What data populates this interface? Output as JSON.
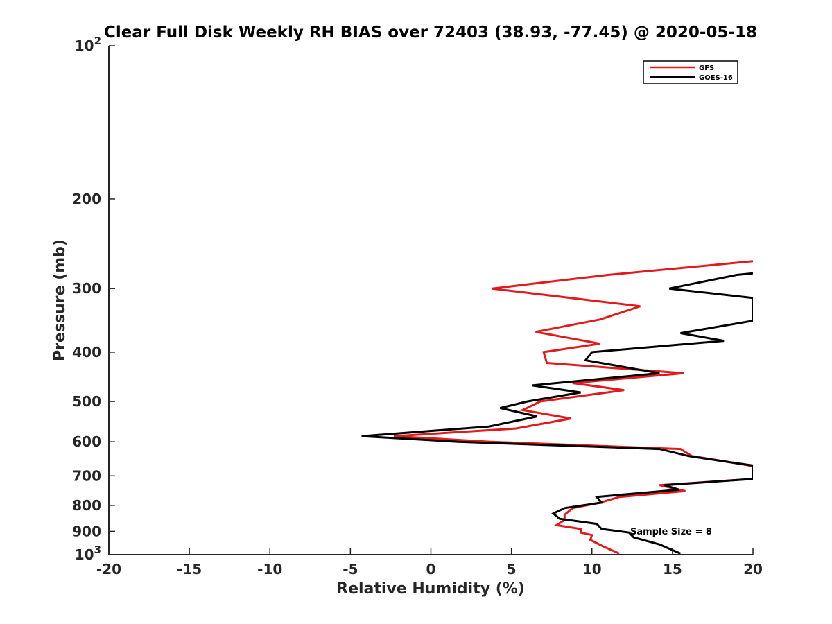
{
  "chart_data": {
    "type": "line",
    "title": "Clear Full Disk Weekly RH BIAS over 72403 (38.93, -77.45) @ 2020-05-18",
    "xlabel": "Relative Humidity (%)",
    "ylabel": "Pressure (mb)",
    "xlim": [
      -20,
      20
    ],
    "ylim": [
      100,
      1000
    ],
    "y_scale": "log",
    "y_reversed": true,
    "grid": false,
    "legend_position": "top-right",
    "x_ticks": [
      "-20",
      "-15",
      "-10",
      "-5",
      "0",
      "5",
      "10",
      "15",
      "20"
    ],
    "y_ticks": [
      {
        "value": 100,
        "base": "10",
        "exp": "2"
      },
      {
        "value": 200,
        "label": "200"
      },
      {
        "value": 300,
        "label": "300"
      },
      {
        "value": 400,
        "label": "400"
      },
      {
        "value": 500,
        "label": "500"
      },
      {
        "value": 600,
        "label": "600"
      },
      {
        "value": 700,
        "label": "700"
      },
      {
        "value": 800,
        "label": "800"
      },
      {
        "value": 900,
        "label": "900"
      },
      {
        "value": 1000,
        "base": "10",
        "exp": "3"
      }
    ],
    "annotation": "Sample Size = 8",
    "series": [
      {
        "name": "GFS",
        "color": "#e31a1c",
        "points": [
          [
            20,
            265
          ],
          [
            11,
            282
          ],
          [
            3.8,
            300
          ],
          [
            13,
            325
          ],
          [
            10.5,
            345
          ],
          [
            6.5,
            365
          ],
          [
            10.5,
            385
          ],
          [
            7,
            400
          ],
          [
            7.2,
            420
          ],
          [
            15.7,
            440
          ],
          [
            8.8,
            460
          ],
          [
            12,
            475
          ],
          [
            6.8,
            500
          ],
          [
            5.7,
            520
          ],
          [
            8.7,
            540
          ],
          [
            5.3,
            565
          ],
          [
            -2.3,
            585
          ],
          [
            3.7,
            600
          ],
          [
            15.5,
            620
          ],
          [
            16.2,
            640
          ],
          [
            18.8,
            660
          ],
          [
            20,
            670
          ],
          [
            20,
            710
          ],
          [
            14.2,
            730
          ],
          [
            15.8,
            750
          ],
          [
            11.7,
            770
          ],
          [
            10.5,
            790
          ],
          [
            8.8,
            810
          ],
          [
            8.3,
            835
          ],
          [
            8.3,
            855
          ],
          [
            7.8,
            875
          ],
          [
            9.3,
            890
          ],
          [
            9.3,
            905
          ],
          [
            10,
            915
          ],
          [
            9.9,
            935
          ],
          [
            10.6,
            960
          ],
          [
            11.7,
            995
          ]
        ]
      },
      {
        "name": "GOES-16",
        "color": "#000000",
        "points": [
          [
            20,
            280
          ],
          [
            19,
            282
          ],
          [
            14.8,
            300
          ],
          [
            20,
            313
          ],
          [
            20,
            347
          ],
          [
            15.5,
            367
          ],
          [
            18.2,
            380
          ],
          [
            10,
            400
          ],
          [
            9.6,
            415
          ],
          [
            14.2,
            440
          ],
          [
            6.3,
            465
          ],
          [
            9.3,
            480
          ],
          [
            6,
            500
          ],
          [
            4.3,
            515
          ],
          [
            6.6,
            535
          ],
          [
            3.6,
            560
          ],
          [
            -4.3,
            585
          ],
          [
            1.7,
            600
          ],
          [
            14.2,
            620
          ],
          [
            16,
            640
          ],
          [
            18.8,
            660
          ],
          [
            20,
            668
          ],
          [
            20,
            710
          ],
          [
            14.5,
            730
          ],
          [
            15.4,
            745
          ],
          [
            10.3,
            770
          ],
          [
            10.6,
            790
          ],
          [
            8.3,
            810
          ],
          [
            7.6,
            830
          ],
          [
            8,
            850
          ],
          [
            10.3,
            870
          ],
          [
            10.6,
            890
          ],
          [
            12.3,
            905
          ],
          [
            12.6,
            925
          ],
          [
            14.2,
            955
          ],
          [
            15.5,
            995
          ]
        ]
      }
    ]
  }
}
